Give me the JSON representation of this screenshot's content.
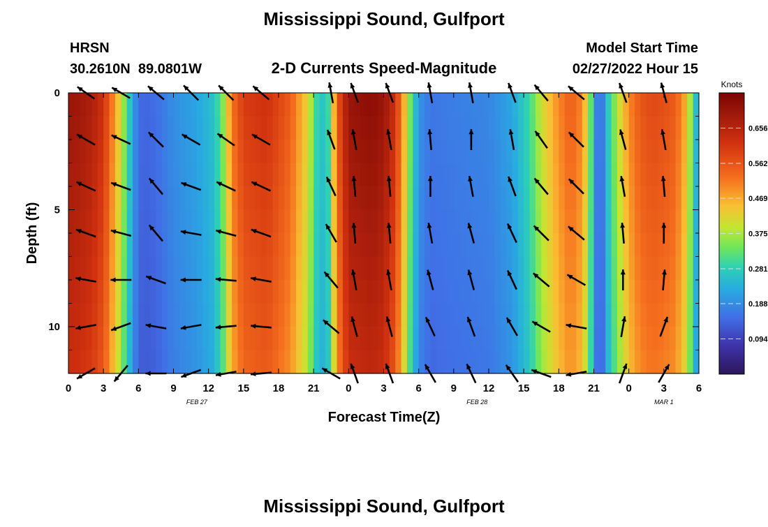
{
  "title": "Mississippi Sound, Gulfport",
  "title_repeat": "Mississippi Sound, Gulfport",
  "station_code": "HRSN",
  "station_coords": "30.2610N  89.0801W",
  "subtitle": "2-D Currents Speed-Magnitude",
  "model_start_label": "Model Start Time",
  "model_start_value": "02/27/2022 Hour 15",
  "colors": {
    "vector": "#000000",
    "tick": "#000000",
    "colorbar_tick": "#dddddd"
  },
  "chart_data": {
    "type": "heatmap",
    "xlabel": "Forecast Time(Z)",
    "ylabel": "Depth (ft)",
    "x_range": [
      0,
      54
    ],
    "y_range": [
      0,
      12
    ],
    "y_reversed": true,
    "x_tick_hours": [
      0,
      3,
      6,
      9,
      12,
      15,
      18,
      21,
      24,
      27,
      30,
      33,
      36,
      39,
      42,
      45,
      48,
      51,
      54
    ],
    "x_tick_labels": [
      "0",
      "3",
      "6",
      "9",
      "12",
      "15",
      "18",
      "21",
      "0",
      "3",
      "6",
      "9",
      "12",
      "15",
      "18",
      "21",
      "0",
      "3",
      "6"
    ],
    "y_ticks": [
      0,
      5,
      10
    ],
    "y_tick_labels": [
      "0",
      "5",
      "10"
    ],
    "date_labels": [
      {
        "hour": 11,
        "text": "FEB 27"
      },
      {
        "hour": 35,
        "text": "FEB 28"
      },
      {
        "hour": 51,
        "text": "MAR 1"
      }
    ],
    "colorbar": {
      "title": "Knots",
      "min": 0.0,
      "max": 0.75,
      "ticks": [
        0.094,
        0.188,
        0.281,
        0.375,
        0.469,
        0.562,
        0.656
      ],
      "tick_labels": [
        "0.094",
        "0.188",
        "0.281",
        "0.375",
        "0.469",
        "0.562",
        "0.656"
      ]
    },
    "speed_profile": {
      "hours": [
        0,
        1,
        2,
        3,
        4,
        4.8,
        5.5,
        6,
        6.5,
        7.5,
        9,
        11,
        12.5,
        13.3,
        14,
        15,
        17,
        19,
        20.5,
        21.5,
        22.3,
        23,
        24,
        26,
        27,
        28,
        28.8,
        29.3,
        30,
        31,
        33,
        36,
        38,
        39.5,
        40.5,
        42,
        43,
        44,
        44.5,
        45,
        45.5,
        46,
        47,
        48,
        49,
        50,
        51,
        52,
        53,
        53.5,
        54
      ],
      "speeds": [
        0.7,
        0.69,
        0.67,
        0.62,
        0.48,
        0.35,
        0.22,
        0.15,
        0.14,
        0.15,
        0.19,
        0.22,
        0.26,
        0.36,
        0.52,
        0.6,
        0.62,
        0.55,
        0.42,
        0.25,
        0.3,
        0.55,
        0.7,
        0.72,
        0.7,
        0.62,
        0.45,
        0.33,
        0.2,
        0.16,
        0.17,
        0.18,
        0.22,
        0.3,
        0.4,
        0.5,
        0.55,
        0.5,
        0.4,
        0.25,
        0.1,
        0.24,
        0.38,
        0.5,
        0.56,
        0.58,
        0.57,
        0.55,
        0.45,
        0.3,
        0.2
      ]
    },
    "vectors": {
      "hours": [
        1.5,
        4.5,
        7.5,
        10.5,
        13.5,
        16.5,
        22.5,
        24.5,
        27.5,
        31,
        34.5,
        38,
        40.5,
        43.5,
        47.5,
        51
      ],
      "depths": [
        0,
        2,
        4,
        6,
        8,
        10,
        12
      ],
      "directions": [
        [
          215,
          210,
          220,
          225,
          225,
          220,
          260,
          250,
          250,
          260,
          260,
          250,
          230,
          220,
          250,
          255
        ],
        [
          210,
          205,
          225,
          210,
          215,
          210,
          250,
          260,
          260,
          265,
          270,
          260,
          235,
          225,
          255,
          260
        ],
        [
          205,
          200,
          230,
          200,
          205,
          205,
          245,
          265,
          265,
          270,
          260,
          250,
          230,
          225,
          260,
          265
        ],
        [
          200,
          195,
          230,
          190,
          195,
          200,
          240,
          265,
          265,
          260,
          255,
          245,
          225,
          220,
          265,
          270
        ],
        [
          190,
          180,
          200,
          180,
          185,
          190,
          230,
          260,
          260,
          255,
          255,
          245,
          220,
          210,
          270,
          275
        ],
        [
          170,
          160,
          190,
          170,
          175,
          185,
          220,
          255,
          255,
          245,
          250,
          240,
          210,
          190,
          280,
          290
        ],
        [
          150,
          130,
          180,
          160,
          170,
          175,
          210,
          250,
          250,
          240,
          245,
          235,
          200,
          170,
          290,
          300
        ]
      ]
    }
  }
}
